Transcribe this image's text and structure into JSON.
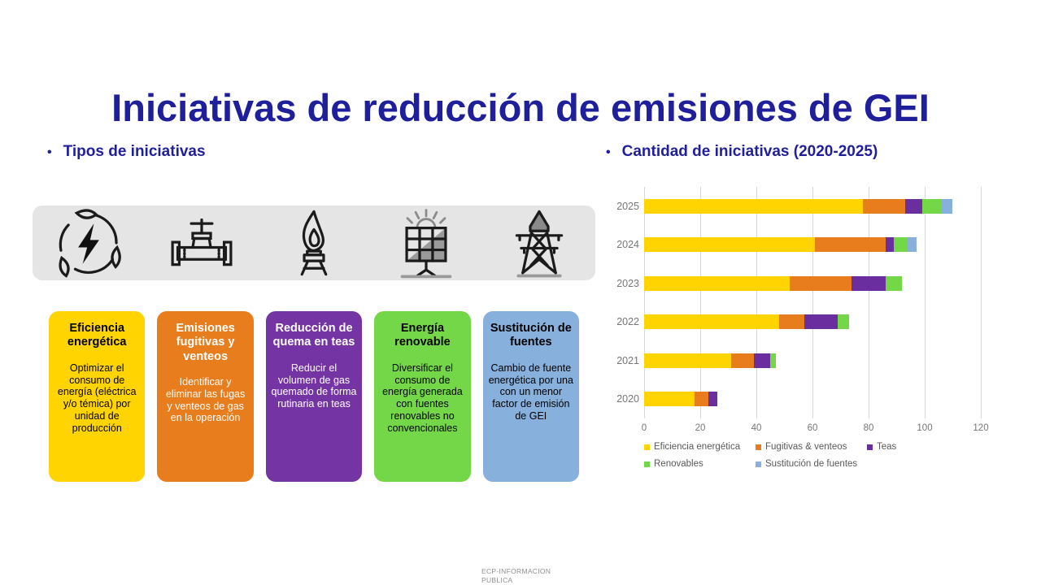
{
  "slide": {
    "title": "Iniciativas de reducción de emisiones de GEI",
    "bullet": "•",
    "left_heading": "Tipos de iniciativas",
    "right_heading": "Cantidad de iniciativas (2020-2025)",
    "footer_line1": "ECP-INFORMACION",
    "footer_line2": "PUBLICA"
  },
  "colors": {
    "title_blue": "#1F1F9C",
    "band_gray": "#E5E5E5",
    "grid_line": "#D8D8D8",
    "axis_text": "#767676"
  },
  "icons": [
    "eco-energy-icon",
    "pipeline-valve-icon",
    "flare-stack-icon",
    "solar-panel-icon",
    "transmission-tower-icon"
  ],
  "cards": [
    {
      "title": "Eficiencia energética",
      "body": "Optimizar el consumo de energía (eléctrica y/o témica) por unidad de producción",
      "color": "#FFD400",
      "text_color": "#000000"
    },
    {
      "title": "Emisiones fugitivas y venteos",
      "body": "Identificar y eliminar las fugas y venteos de gas en la operación",
      "color": "#E87D1D",
      "text_color": "#FFFFFF"
    },
    {
      "title": "Reducción de quema en teas",
      "body": "Reducir el volumen de gas quemado de forma rutinaria en teas",
      "color": "#7434A4",
      "text_color": "#FFFFFF"
    },
    {
      "title": "Energía renovable",
      "body": "Diversificar el consumo de energía generada con fuentes renovables no convencionales",
      "color": "#74D748",
      "text_color": "#000000"
    },
    {
      "title": "Sustitución de fuentes",
      "body": "Cambio de fuente energética por una con un menor factor de emisión de GEI",
      "color": "#87B0DC",
      "text_color": "#000000"
    }
  ],
  "chart_data": {
    "type": "bar",
    "orientation": "horizontal-stacked",
    "title": "Cantidad de iniciativas (2020-2025)",
    "categories": [
      "2025",
      "2024",
      "2023",
      "2022",
      "2021",
      "2020"
    ],
    "series": [
      {
        "name": "Eficiencia energética",
        "color": "#FFD400",
        "values": [
          78,
          61,
          52,
          48,
          31,
          18
        ]
      },
      {
        "name": "Fugitivas & venteos",
        "color": "#E87D1D",
        "values": [
          15,
          25,
          22,
          9,
          8,
          5
        ]
      },
      {
        "name": "Teas",
        "color": "#6B2E9E",
        "values": [
          6,
          3,
          12,
          12,
          6,
          3
        ]
      },
      {
        "name": "Renovables",
        "color": "#74D748",
        "values": [
          7,
          5,
          6,
          4,
          2,
          0
        ]
      },
      {
        "name": "Sustitución de fuentes",
        "color": "#87B0DC",
        "values": [
          4,
          3,
          0,
          0,
          0,
          0
        ]
      }
    ],
    "totals": [
      110,
      97,
      92,
      73,
      47,
      26
    ],
    "xlim": [
      0,
      120
    ],
    "xticks": [
      0,
      20,
      40,
      60,
      80,
      100,
      120
    ],
    "grid": true,
    "legend_position": "bottom"
  }
}
